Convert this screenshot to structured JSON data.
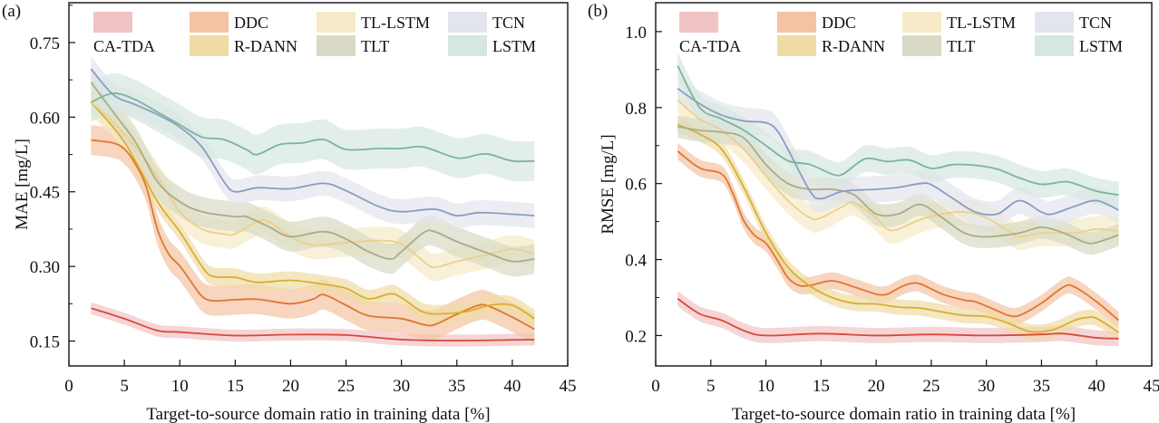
{
  "chart_data": [
    {
      "panel_label": "(a)",
      "type": "line",
      "xlabel": "Target-to-source domain ratio in training data [%]",
      "ylabel": "MAE [mg/L]",
      "xlim": [
        0,
        45
      ],
      "ylim": [
        0.1,
        0.83
      ],
      "xticks": [
        "0",
        "5",
        "10",
        "15",
        "20",
        "25",
        "30",
        "35",
        "40",
        "45"
      ],
      "yticks": [
        "0.15",
        "0.30",
        "0.45",
        "0.60",
        "0.75"
      ],
      "grid": false,
      "legend": "top",
      "series": [
        {
          "name": "CA-TDA",
          "line": "#d64a3a",
          "band_color": "#f1c3c4",
          "band": 0.012,
          "x": [
            2,
            5,
            8,
            10,
            15,
            20,
            25,
            30,
            35,
            42
          ],
          "y": [
            0.216,
            0.195,
            0.171,
            0.168,
            0.161,
            0.163,
            0.162,
            0.153,
            0.151,
            0.153
          ]
        },
        {
          "name": "DDC",
          "line": "#e07632",
          "band_color": "#f3c3a3",
          "band": 0.03,
          "x": [
            2,
            4,
            5,
            6,
            7,
            8,
            9,
            10,
            11,
            12,
            13,
            15,
            17,
            20,
            22,
            23,
            25,
            27,
            30,
            32,
            33,
            35,
            37,
            38,
            40,
            42
          ],
          "y": [
            0.554,
            0.548,
            0.536,
            0.506,
            0.458,
            0.373,
            0.325,
            0.301,
            0.27,
            0.24,
            0.231,
            0.233,
            0.234,
            0.225,
            0.234,
            0.243,
            0.222,
            0.201,
            0.195,
            0.183,
            0.183,
            0.204,
            0.222,
            0.219,
            0.198,
            0.174
          ]
        },
        {
          "name": "R-DANN",
          "line": "#d8ae33",
          "band_color": "#efdca4",
          "band": 0.018,
          "x": [
            2,
            5,
            8,
            10,
            12,
            13,
            15,
            17,
            20,
            23,
            25,
            27,
            29,
            30,
            32,
            34,
            36,
            38,
            40,
            42
          ],
          "y": [
            0.63,
            0.55,
            0.43,
            0.37,
            0.3,
            0.28,
            0.278,
            0.268,
            0.272,
            0.264,
            0.256,
            0.235,
            0.245,
            0.237,
            0.208,
            0.205,
            0.21,
            0.222,
            0.222,
            0.195
          ]
        },
        {
          "name": "TL-LSTM",
          "line": "#ecd08a",
          "band_color": "#f6eac8",
          "band": 0.028,
          "x": [
            2,
            4,
            6,
            8,
            10,
            12,
            14,
            15,
            17,
            18,
            20,
            22,
            25,
            28,
            30,
            32,
            33,
            35,
            38,
            40,
            42
          ],
          "y": [
            0.63,
            0.59,
            0.54,
            0.48,
            0.41,
            0.375,
            0.365,
            0.365,
            0.39,
            0.39,
            0.36,
            0.343,
            0.348,
            0.352,
            0.345,
            0.31,
            0.298,
            0.31,
            0.325,
            0.335,
            0.325
          ]
        },
        {
          "name": "TLT",
          "line": "#a9ac8a",
          "band_color": "#d9dac5",
          "band": 0.03,
          "x": [
            2,
            4,
            6,
            8,
            10,
            12,
            15,
            16,
            18,
            20,
            23,
            25,
            27,
            29,
            30,
            32,
            33,
            35,
            38,
            40,
            42
          ],
          "y": [
            0.67,
            0.61,
            0.55,
            0.47,
            0.43,
            0.41,
            0.4,
            0.4,
            0.38,
            0.36,
            0.37,
            0.355,
            0.33,
            0.315,
            0.33,
            0.368,
            0.37,
            0.35,
            0.325,
            0.31,
            0.315
          ]
        },
        {
          "name": "TCN",
          "line": "#8a9cc2",
          "band_color": "#e2e5ed",
          "band": 0.025,
          "x": [
            2,
            4,
            6,
            8,
            10,
            12,
            14,
            15,
            17,
            20,
            23,
            25,
            28,
            30,
            33,
            35,
            37,
            40,
            42
          ],
          "y": [
            0.697,
            0.645,
            0.625,
            0.605,
            0.58,
            0.54,
            0.47,
            0.45,
            0.458,
            0.456,
            0.467,
            0.452,
            0.42,
            0.41,
            0.415,
            0.402,
            0.408,
            0.405,
            0.402
          ]
        },
        {
          "name": "LSTM",
          "line": "#7db39c",
          "band_color": "#d5e7df",
          "band": 0.04,
          "x": [
            2,
            4,
            6,
            8,
            10,
            12,
            14,
            16,
            17,
            19,
            21,
            23,
            25,
            28,
            30,
            32,
            35,
            37,
            38,
            40,
            42
          ],
          "y": [
            0.63,
            0.648,
            0.635,
            0.61,
            0.585,
            0.56,
            0.555,
            0.535,
            0.525,
            0.545,
            0.548,
            0.555,
            0.535,
            0.537,
            0.537,
            0.54,
            0.518,
            0.525,
            0.525,
            0.512,
            0.512
          ]
        }
      ]
    },
    {
      "panel_label": "(b)",
      "type": "line",
      "xlabel": "Target-to-source domain ratio in training data [%]",
      "ylabel": "RMSE [mg/L]",
      "xlim": [
        0,
        45
      ],
      "ylim": [
        0.12,
        1.076
      ],
      "xticks": [
        "0",
        "5",
        "10",
        "15",
        "20",
        "25",
        "30",
        "35",
        "40",
        "45"
      ],
      "yticks": [
        "0.2",
        "0.4",
        "0.6",
        "0.8",
        "1.0"
      ],
      "grid": false,
      "legend": "top",
      "series": [
        {
          "name": "CA-TDA",
          "line": "#d64a3a",
          "band_color": "#f1c3c4",
          "band": 0.02,
          "x": [
            2,
            4,
            6,
            8,
            10,
            15,
            20,
            25,
            30,
            35,
            37,
            40,
            42
          ],
          "y": [
            0.297,
            0.257,
            0.24,
            0.213,
            0.2,
            0.205,
            0.2,
            0.203,
            0.2,
            0.203,
            0.205,
            0.194,
            0.192
          ]
        },
        {
          "name": "DDC",
          "line": "#e07632",
          "band_color": "#f3c3a3",
          "band": 0.022,
          "x": [
            2,
            4,
            6,
            7,
            8,
            9,
            10,
            11,
            12,
            13,
            14,
            16,
            18,
            20,
            21,
            22,
            23,
            24,
            26,
            28,
            29,
            31,
            32,
            33,
            35,
            37,
            38,
            40,
            42
          ],
          "y": [
            0.685,
            0.641,
            0.625,
            0.574,
            0.502,
            0.463,
            0.443,
            0.4,
            0.352,
            0.332,
            0.332,
            0.344,
            0.328,
            0.309,
            0.309,
            0.324,
            0.336,
            0.336,
            0.309,
            0.293,
            0.289,
            0.265,
            0.253,
            0.253,
            0.285,
            0.328,
            0.328,
            0.289,
            0.24
          ]
        },
        {
          "name": "R-DANN",
          "line": "#d8ae33",
          "band_color": "#efdca4",
          "band": 0.02,
          "x": [
            2,
            4,
            6,
            8,
            10,
            12,
            14,
            16,
            18,
            20,
            22,
            24,
            26,
            28,
            30,
            32,
            34,
            36,
            38,
            39,
            40,
            42
          ],
          "y": [
            0.755,
            0.73,
            0.69,
            0.59,
            0.47,
            0.38,
            0.33,
            0.3,
            0.285,
            0.283,
            0.275,
            0.272,
            0.262,
            0.253,
            0.25,
            0.232,
            0.21,
            0.215,
            0.24,
            0.247,
            0.245,
            0.208
          ]
        },
        {
          "name": "TL-LSTM",
          "line": "#ecd08a",
          "band_color": "#f6eac8",
          "band": 0.035,
          "x": [
            2,
            4,
            6,
            8,
            10,
            12,
            14,
            15,
            17,
            18,
            20,
            21,
            22,
            24,
            26,
            28,
            30,
            32,
            33,
            35,
            38,
            40,
            42
          ],
          "y": [
            0.82,
            0.77,
            0.74,
            0.69,
            0.62,
            0.555,
            0.51,
            0.51,
            0.54,
            0.55,
            0.51,
            0.48,
            0.48,
            0.505,
            0.52,
            0.525,
            0.51,
            0.475,
            0.46,
            0.47,
            0.47,
            0.48,
            0.475
          ]
        },
        {
          "name": "TLT",
          "line": "#a9ac8a",
          "band_color": "#d9dac5",
          "band": 0.03,
          "x": [
            2,
            4,
            6,
            8,
            10,
            12,
            14,
            16,
            18,
            20,
            22,
            24,
            26,
            28,
            30,
            33,
            35,
            37,
            39,
            40,
            42
          ],
          "y": [
            0.75,
            0.74,
            0.735,
            0.72,
            0.65,
            0.6,
            0.585,
            0.585,
            0.57,
            0.52,
            0.52,
            0.545,
            0.51,
            0.47,
            0.46,
            0.47,
            0.485,
            0.47,
            0.445,
            0.445,
            0.465
          ]
        },
        {
          "name": "TCN",
          "line": "#8a9cc2",
          "band_color": "#e2e5ed",
          "band": 0.035,
          "x": [
            2,
            4,
            6,
            8,
            10,
            11,
            12,
            14,
            15,
            17,
            20,
            22,
            24,
            25,
            27,
            29,
            31,
            33,
            35,
            36,
            38,
            40,
            42
          ],
          "y": [
            0.85,
            0.81,
            0.78,
            0.765,
            0.76,
            0.74,
            0.69,
            0.58,
            0.56,
            0.58,
            0.585,
            0.59,
            0.6,
            0.597,
            0.56,
            0.525,
            0.52,
            0.555,
            0.525,
            0.52,
            0.54,
            0.555,
            0.53
          ]
        },
        {
          "name": "LSTM",
          "line": "#7db39c",
          "band_color": "#d5e7df",
          "band": 0.035,
          "x": [
            2,
            4,
            6,
            8,
            10,
            12,
            14,
            16,
            17,
            19,
            21,
            23,
            25,
            27,
            29,
            31,
            33,
            35,
            37,
            38,
            40,
            42
          ],
          "y": [
            0.91,
            0.8,
            0.77,
            0.74,
            0.7,
            0.66,
            0.65,
            0.625,
            0.625,
            0.665,
            0.658,
            0.662,
            0.64,
            0.65,
            0.648,
            0.638,
            0.615,
            0.598,
            0.605,
            0.6,
            0.58,
            0.57
          ]
        }
      ]
    }
  ]
}
